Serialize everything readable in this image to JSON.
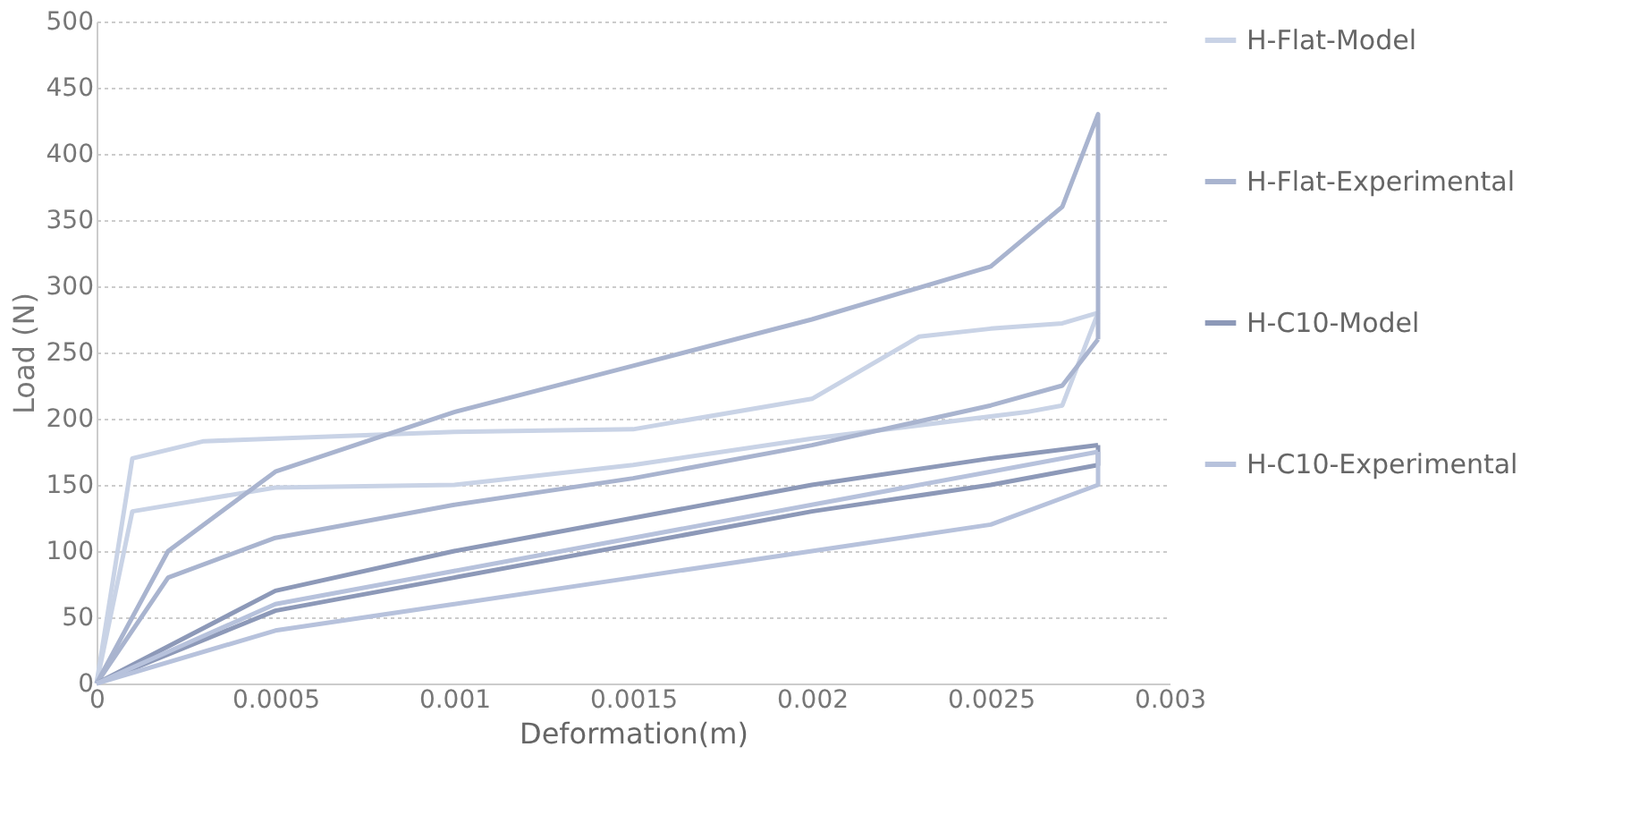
{
  "chart_data": {
    "type": "line",
    "xlabel": "Deformation(m)",
    "ylabel": "Load (N)",
    "xlim": [
      0,
      0.003
    ],
    "xticks": [
      0,
      0.0005,
      0.001,
      0.0015,
      0.002,
      0.0025,
      0.003
    ],
    "ylim": [
      0,
      500
    ],
    "yticks": [
      0,
      50,
      100,
      150,
      200,
      250,
      300,
      350,
      400,
      450,
      500
    ],
    "grid": "y",
    "legend": "right",
    "line_style": "solid",
    "marker": "none",
    "series": [
      {
        "name": "H-Flat-Model",
        "color": "#c9d3e6",
        "x": [
          0,
          0.0001,
          0.0003,
          0.001,
          0.0015,
          0.002,
          0.0023,
          0.0025,
          0.0027,
          0.0028
        ],
        "values": [
          0,
          170,
          183,
          190,
          192,
          215,
          262,
          268,
          272,
          280
        ]
      },
      {
        "color": "#c9d3e6",
        "x": [
          0,
          0.0001,
          0.0005,
          0.001,
          0.0015,
          0.002,
          0.0026,
          0.0027,
          0.0028
        ],
        "values": [
          0,
          130,
          148,
          150,
          165,
          185,
          205,
          210,
          280
        ]
      },
      {
        "name": "H-Flat-Experimental",
        "color": "#a9b4cf",
        "x": [
          0,
          0.0002,
          0.0005,
          0.001,
          0.0015,
          0.002,
          0.0025,
          0.0027,
          0.0028,
          0.0028
        ],
        "values": [
          0,
          100,
          160,
          205,
          240,
          275,
          315,
          360,
          430,
          260
        ]
      },
      {
        "color": "#a9b4cf",
        "x": [
          0,
          0.0002,
          0.0005,
          0.001,
          0.0015,
          0.002,
          0.0025,
          0.0027,
          0.0028
        ],
        "values": [
          0,
          80,
          110,
          135,
          155,
          180,
          210,
          225,
          260
        ]
      },
      {
        "name": "H-C10-Model",
        "color": "#8d99b8",
        "x": [
          0,
          0.0005,
          0.001,
          0.0015,
          0.002,
          0.0025,
          0.0028
        ],
        "values": [
          0,
          70,
          100,
          125,
          150,
          170,
          180
        ]
      },
      {
        "color": "#8d99b8",
        "x": [
          0,
          0.0005,
          0.001,
          0.0015,
          0.002,
          0.0025,
          0.0028,
          0.0028
        ],
        "values": [
          0,
          55,
          80,
          105,
          130,
          150,
          165,
          180
        ]
      },
      {
        "name": "H-C10-Experimental",
        "color": "#b7c2dc",
        "x": [
          0,
          0.0005,
          0.001,
          0.0015,
          0.002,
          0.0025,
          0.0028
        ],
        "values": [
          0,
          60,
          85,
          110,
          135,
          160,
          175
        ]
      },
      {
        "color": "#b7c2dc",
        "x": [
          0,
          0.0005,
          0.001,
          0.0015,
          0.002,
          0.0025,
          0.0028,
          0.0028
        ],
        "values": [
          0,
          40,
          60,
          80,
          100,
          120,
          150,
          175
        ]
      }
    ]
  }
}
